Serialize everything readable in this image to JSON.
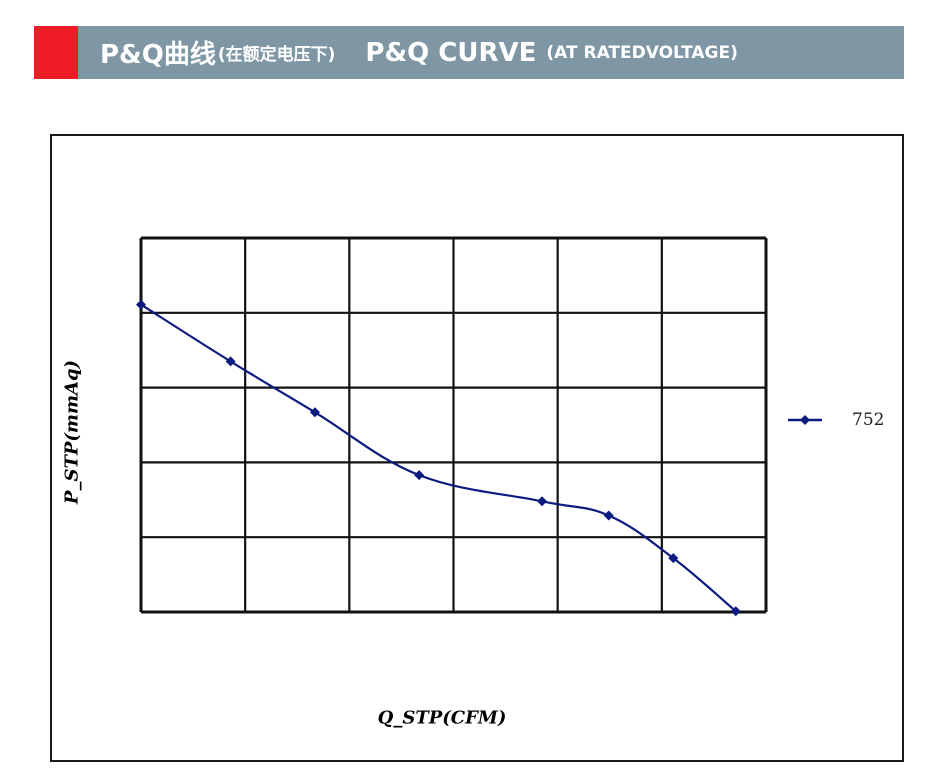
{
  "header": {
    "title_cn": "P&Q曲线",
    "title_cn_sub": "(在额定电压下)",
    "title_en": "P&Q CURVE",
    "title_en_sub": "(AT RATEDVOLTAGE)",
    "accent_color": "#ee1c25",
    "bar_color": "#7f97a5"
  },
  "chart_data": {
    "type": "line",
    "title": "P&Q CURVE (AT RATEDVOLTAGE)",
    "xlabel": "Q_STP(CFM)",
    "ylabel": "P_STP(mmAq)",
    "xlim": [
      0,
      6
    ],
    "ylim": [
      0,
      5
    ],
    "x_gridlines": 6,
    "y_gridlines": 5,
    "grid": true,
    "tick_labels_visible": false,
    "legend_position": "right",
    "series": [
      {
        "name": "752",
        "color": "#0d1a80",
        "marker": "diamond",
        "x": [
          0.0,
          0.86,
          1.67,
          2.67,
          3.85,
          4.49,
          5.11,
          5.71
        ],
        "y": [
          4.11,
          3.35,
          2.67,
          1.83,
          1.48,
          1.29,
          0.72,
          0.01
        ]
      }
    ]
  },
  "legend": {
    "items": [
      {
        "label": "752",
        "color": "#0d1a80"
      }
    ]
  }
}
